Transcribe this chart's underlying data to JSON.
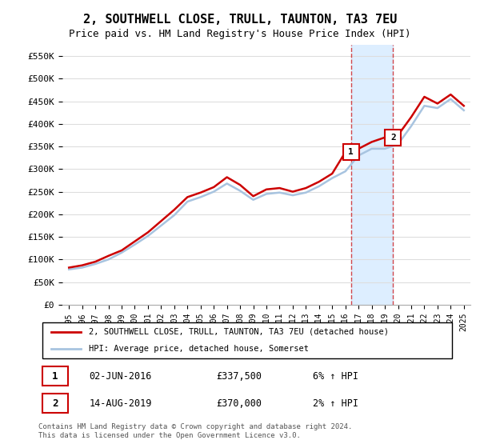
{
  "title": "2, SOUTHWELL CLOSE, TRULL, TAUNTON, TA3 7EU",
  "subtitle": "Price paid vs. HM Land Registry's House Price Index (HPI)",
  "legend_line1": "2, SOUTHWELL CLOSE, TRULL, TAUNTON, TA3 7EU (detached house)",
  "legend_line2": "HPI: Average price, detached house, Somerset",
  "footer": "Contains HM Land Registry data © Crown copyright and database right 2024.\nThis data is licensed under the Open Government Licence v3.0.",
  "sale1_label": "1",
  "sale1_date": "02-JUN-2016",
  "sale1_price": "£337,500",
  "sale1_hpi": "6% ↑ HPI",
  "sale1_year": 2016.42,
  "sale1_value": 337500,
  "sale2_label": "2",
  "sale2_date": "14-AUG-2019",
  "sale2_price": "£370,000",
  "sale2_hpi": "2% ↑ HPI",
  "sale2_year": 2019.62,
  "sale2_value": 370000,
  "ylim": [
    0,
    575000
  ],
  "yticks": [
    0,
    50000,
    100000,
    150000,
    200000,
    250000,
    300000,
    350000,
    400000,
    450000,
    500000,
    550000
  ],
  "ytick_labels": [
    "£0",
    "£50K",
    "£100K",
    "£150K",
    "£200K",
    "£250K",
    "£300K",
    "£350K",
    "£400K",
    "£450K",
    "£500K",
    "£550K"
  ],
  "hpi_color": "#a8c4e0",
  "price_color": "#cc0000",
  "shade_color": "#ddeeff",
  "title_fontsize": 11,
  "subtitle_fontsize": 9,
  "background_color": "#ffffff",
  "hpi_years": [
    1995,
    1996,
    1997,
    1998,
    1999,
    2000,
    2001,
    2002,
    2003,
    2004,
    2005,
    2006,
    2007,
    2008,
    2009,
    2010,
    2011,
    2012,
    2013,
    2014,
    2015,
    2016,
    2017,
    2018,
    2019,
    2020,
    2021,
    2022,
    2023,
    2024,
    2025
  ],
  "hpi_values": [
    78000,
    82000,
    90000,
    100000,
    115000,
    133000,
    152000,
    175000,
    198000,
    228000,
    238000,
    250000,
    268000,
    252000,
    232000,
    245000,
    248000,
    242000,
    248000,
    262000,
    280000,
    295000,
    330000,
    345000,
    345000,
    355000,
    395000,
    440000,
    435000,
    455000,
    430000
  ],
  "price_years": [
    1995,
    1996,
    1997,
    1998,
    1999,
    2000,
    2001,
    2002,
    2003,
    2004,
    2005,
    2006,
    2007,
    2008,
    2009,
    2010,
    2011,
    2012,
    2013,
    2014,
    2015,
    2016,
    2017,
    2018,
    2019,
    2020,
    2021,
    2022,
    2023,
    2024,
    2025
  ],
  "price_values": [
    82000,
    87000,
    95000,
    108000,
    120000,
    140000,
    160000,
    185000,
    210000,
    238000,
    248000,
    260000,
    282000,
    265000,
    240000,
    255000,
    258000,
    250000,
    258000,
    272000,
    290000,
    337500,
    345000,
    360000,
    370000,
    375000,
    415000,
    460000,
    445000,
    465000,
    440000
  ]
}
